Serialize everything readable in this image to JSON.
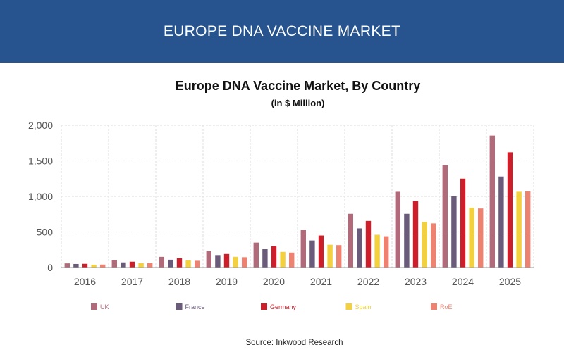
{
  "header": {
    "title": "EUROPE DNA VACCINE MARKET"
  },
  "chart_data": {
    "type": "bar",
    "title": "Europe DNA Vaccine Market, By Country",
    "subtitle": "(in $ Million)",
    "xlabel": "",
    "ylabel": "",
    "ylim": [
      0,
      2000
    ],
    "yticks": [
      "0",
      "500",
      "1,000",
      "1,500",
      "2,000"
    ],
    "grid": true,
    "legend_position": "bottom",
    "categories": [
      "2016",
      "2017",
      "2018",
      "2019",
      "2020",
      "2021",
      "2022",
      "2023",
      "2024",
      "2025"
    ],
    "series": [
      {
        "name": "UK",
        "color": "#b06a7a",
        "values": [
          58,
          100,
          150,
          230,
          350,
          530,
          755,
          1065,
          1440,
          1855
        ]
      },
      {
        "name": "France",
        "color": "#6b5b7b",
        "values": [
          50,
          72,
          110,
          175,
          260,
          380,
          550,
          755,
          1005,
          1280
        ]
      },
      {
        "name": "Germany",
        "color": "#cc1f2b",
        "values": [
          52,
          82,
          130,
          190,
          300,
          450,
          655,
          935,
          1250,
          1620
        ]
      },
      {
        "name": "Spain",
        "color": "#f3d03e",
        "values": [
          40,
          60,
          100,
          150,
          220,
          320,
          460,
          640,
          840,
          1065
        ]
      },
      {
        "name": "RoE",
        "color": "#ee8270",
        "values": [
          42,
          62,
          95,
          145,
          210,
          315,
          440,
          620,
          830,
          1070
        ]
      }
    ]
  },
  "source": {
    "text": "Source: Inkwood Research"
  }
}
